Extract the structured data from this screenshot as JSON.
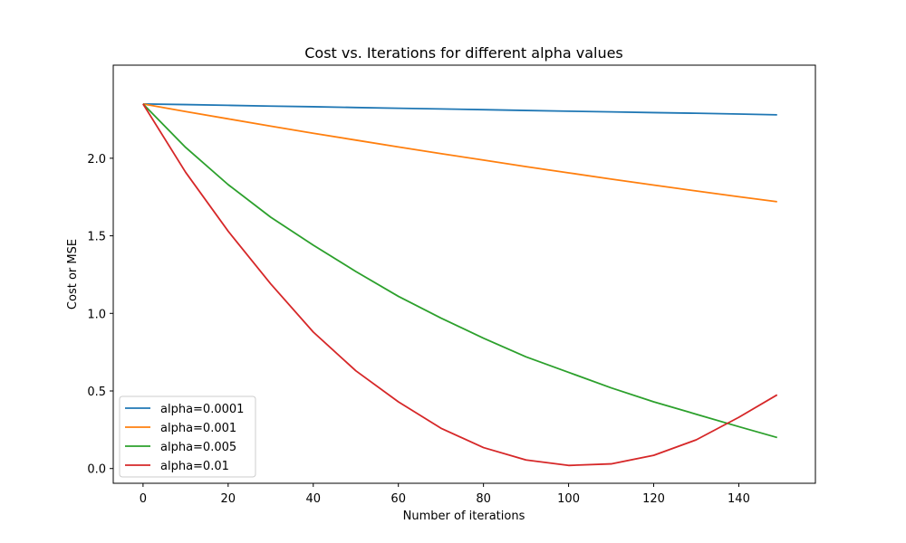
{
  "chart_data": {
    "type": "line",
    "title": "Cost vs. Iterations for different alpha values",
    "xlabel": "Number of iterations",
    "ylabel": "Cost or MSE",
    "xlim": [
      -7,
      158
    ],
    "ylim": [
      -0.095,
      2.6
    ],
    "xticks": [
      0,
      20,
      40,
      60,
      80,
      100,
      120,
      140
    ],
    "yticks": [
      0.0,
      0.5,
      1.0,
      1.5,
      2.0
    ],
    "xtick_labels": [
      "0",
      "20",
      "40",
      "60",
      "80",
      "100",
      "120",
      "140"
    ],
    "ytick_labels": [
      "0.0",
      "0.5",
      "1.0",
      "1.5",
      "2.0"
    ],
    "grid": false,
    "legend_position": "bottom-left",
    "x": [
      0,
      10,
      20,
      30,
      40,
      50,
      60,
      70,
      80,
      90,
      100,
      110,
      120,
      130,
      140,
      149
    ],
    "series": [
      {
        "name": "alpha=0.0001",
        "color": "#1f77b4",
        "values": [
          2.35,
          2.346,
          2.341,
          2.336,
          2.332,
          2.327,
          2.322,
          2.318,
          2.313,
          2.308,
          2.303,
          2.299,
          2.294,
          2.29,
          2.285,
          2.28
        ]
      },
      {
        "name": "alpha=0.001",
        "color": "#ff7f0e",
        "values": [
          2.35,
          2.301,
          2.254,
          2.207,
          2.161,
          2.117,
          2.073,
          2.03,
          1.988,
          1.946,
          1.906,
          1.866,
          1.827,
          1.789,
          1.752,
          1.72
        ]
      },
      {
        "name": "alpha=0.005",
        "color": "#2ca02c",
        "values": [
          2.35,
          2.07,
          1.83,
          1.62,
          1.44,
          1.27,
          1.11,
          0.97,
          0.84,
          0.72,
          0.62,
          0.52,
          0.43,
          0.35,
          0.27,
          0.2
        ]
      },
      {
        "name": "alpha=0.01",
        "color": "#d62728",
        "values": [
          2.35,
          1.91,
          1.53,
          1.19,
          0.88,
          0.63,
          0.43,
          0.26,
          0.135,
          0.055,
          0.02,
          0.03,
          0.085,
          0.185,
          0.33,
          0.475
        ]
      }
    ]
  }
}
